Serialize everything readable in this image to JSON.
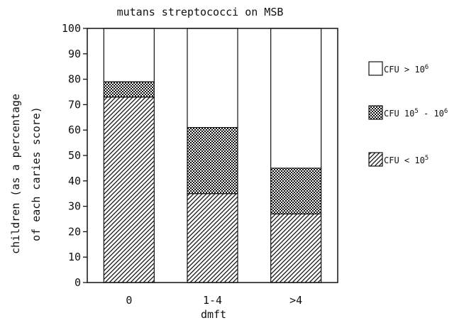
{
  "chart_data": {
    "type": "bar",
    "stacked": true,
    "title": "mutans streptococci on MSB",
    "xlabel": "dmft",
    "ylabel_line1": "children (as a percentage",
    "ylabel_line2": "of each caries score)",
    "ylim": [
      0,
      100
    ],
    "yticks": [
      "0",
      "10",
      "20",
      "30",
      "40",
      "50",
      "60",
      "70",
      "80",
      "90",
      "100"
    ],
    "categories": [
      "0",
      "1-4",
      ">4"
    ],
    "series": [
      {
        "key": "low",
        "pattern": "diagonal-hatch",
        "values": [
          73,
          35,
          27
        ]
      },
      {
        "key": "mid",
        "pattern": "crosshatch",
        "values": [
          6,
          26,
          18
        ]
      },
      {
        "key": "high",
        "pattern": "white",
        "values": [
          21,
          39,
          55
        ]
      }
    ],
    "legend": {
      "position": "right",
      "items": [
        {
          "pattern": "white",
          "prefix": "CFU > 10",
          "sup": "6",
          "mid": "",
          "sup2": ""
        },
        {
          "pattern": "crosshatch",
          "prefix": "CFU 10",
          "sup": "5",
          "mid": " - 10",
          "sup2": "6"
        },
        {
          "pattern": "diagonal-hatch",
          "prefix": "CFU < 10",
          "sup": "5",
          "mid": "",
          "sup2": ""
        }
      ]
    },
    "grid": false
  }
}
